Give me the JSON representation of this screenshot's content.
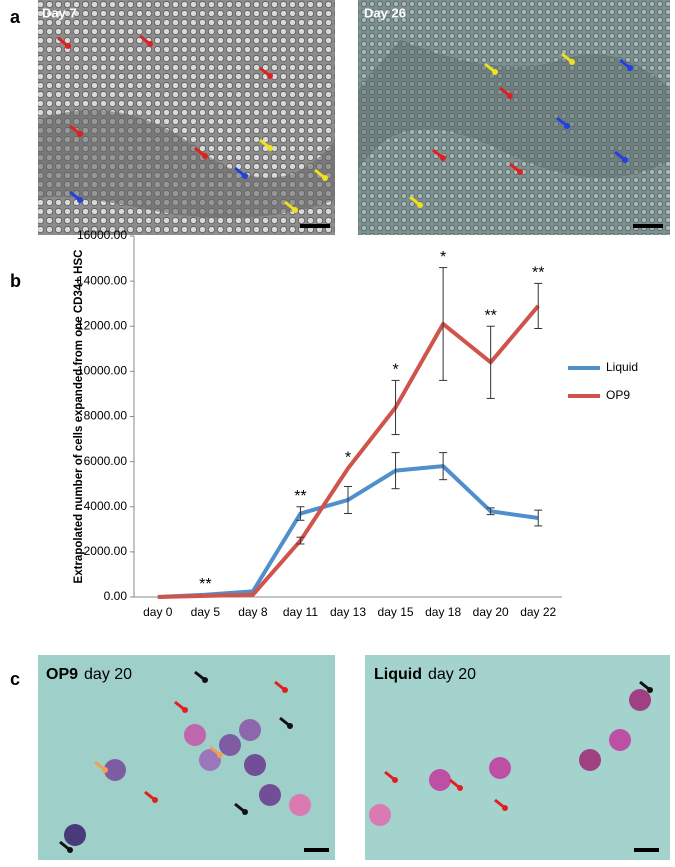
{
  "panels": {
    "a": {
      "label": "a",
      "images": [
        "Day 7",
        "Day 26"
      ]
    },
    "b": {
      "label": "b"
    },
    "c": {
      "label": "c",
      "images": [
        {
          "strong": "OP9",
          "rest": "day 20"
        },
        {
          "strong": "Liquid",
          "rest": "day 20"
        }
      ]
    }
  },
  "chart_data": {
    "type": "line",
    "y_label": "Extrapolated number of cells expanded from one CD34+ HSC",
    "categories": [
      "day 0",
      "day 5",
      "day 8",
      "day 11",
      "day 13",
      "day 15",
      "day 18",
      "day 20",
      "day 22"
    ],
    "series": [
      {
        "name": "Liquid",
        "color": "#4f8fcc",
        "values": [
          0,
          100,
          250,
          3700,
          4300,
          5600,
          5800,
          3800,
          3500
        ],
        "errors": [
          0,
          0,
          0,
          300,
          600,
          800,
          600,
          150,
          350
        ]
      },
      {
        "name": "OP9",
        "color": "#d0534c",
        "values": [
          0,
          50,
          100,
          2500,
          5700,
          8400,
          12100,
          10400,
          12900
        ],
        "errors": [
          0,
          0,
          0,
          150,
          0,
          1200,
          2500,
          1600,
          1000
        ]
      }
    ],
    "annotations": [
      null,
      "**",
      null,
      "**",
      "*",
      "*",
      "*",
      "**",
      "**"
    ],
    "ylim": [
      0,
      16000
    ],
    "yticks": [
      {
        "value": 0,
        "label": "0.00"
      },
      {
        "value": 2000,
        "label": "2000.00"
      },
      {
        "value": 4000,
        "label": "4000.00"
      },
      {
        "value": 6000,
        "label": "6000.00"
      },
      {
        "value": 8000,
        "label": "8000.00"
      },
      {
        "value": 10000,
        "label": "10000.00"
      },
      {
        "value": 12000,
        "label": "12000.00"
      },
      {
        "value": 14000,
        "label": "14000.00"
      },
      {
        "value": 16000,
        "label": "16000.00"
      }
    ],
    "legend": "right"
  }
}
